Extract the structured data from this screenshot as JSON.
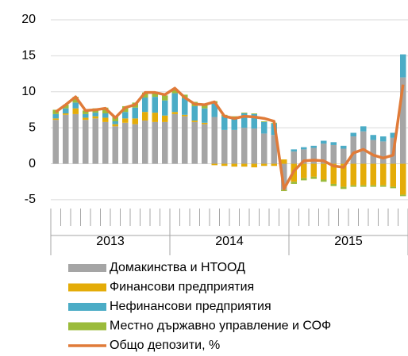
{
  "chart_data": {
    "type": "bar",
    "stacked": true,
    "categories": [
      null,
      null,
      null,
      null,
      null,
      null,
      null,
      null,
      null,
      null,
      null,
      null,
      null,
      null,
      null,
      null,
      null,
      null,
      null,
      null,
      null,
      null,
      null,
      null,
      null,
      null,
      null,
      null,
      null,
      null,
      null,
      null,
      null,
      null,
      null,
      null
    ],
    "year_labels": [
      "2013",
      "2014",
      "2015"
    ],
    "series": [
      {
        "name": "Домакинства и НТООД",
        "color": "#a5a5a5",
        "values": [
          6.1,
          6.8,
          6.9,
          6.1,
          6.3,
          5.8,
          5.2,
          5.7,
          5.5,
          6.0,
          5.8,
          5.8,
          6.9,
          6.6,
          5.8,
          5.5,
          6.5,
          4.7,
          4.7,
          5.0,
          4.9,
          4.2,
          4.0,
          -3.6,
          1.7,
          2.0,
          2.2,
          2.8,
          2.6,
          2.1,
          3.8,
          4.5,
          3.3,
          3.1,
          3.6,
          12.0
        ]
      },
      {
        "name": "Финансови предприятия",
        "color": "#e4ac08",
        "values": [
          0.2,
          0.2,
          0.8,
          0.3,
          0.3,
          0.6,
          0.3,
          0.6,
          0.8,
          1.2,
          1.3,
          0.9,
          0.3,
          0.2,
          0.2,
          0.2,
          -0.2,
          -0.3,
          -0.4,
          -0.4,
          -0.5,
          -0.3,
          -0.3,
          0.6,
          -2.5,
          -2.0,
          -1.8,
          -2.2,
          -2.8,
          -3.2,
          -3.0,
          -3.0,
          -3.0,
          -3.0,
          -3.2,
          -4.3
        ]
      },
      {
        "name": "Нефинансови предприятия",
        "color": "#4bacc6",
        "values": [
          0.6,
          0.7,
          0.8,
          0.5,
          0.5,
          0.6,
          0.4,
          0.9,
          1.5,
          2.0,
          2.2,
          2.1,
          2.6,
          2.3,
          2.0,
          2.0,
          1.9,
          1.9,
          1.7,
          2.0,
          2.0,
          1.6,
          1.6,
          0.0,
          0.3,
          0.3,
          0.3,
          0.4,
          0.4,
          0.4,
          0.5,
          0.7,
          0.7,
          0.7,
          0.7,
          3.2
        ]
      },
      {
        "name": "Местно държавно управление и СОФ",
        "color": "#9bbb3b",
        "values": [
          0.6,
          0.5,
          0.8,
          0.5,
          0.6,
          0.8,
          0.6,
          0.8,
          0.7,
          0.7,
          0.7,
          0.7,
          0.6,
          0.5,
          0.6,
          0.5,
          0.3,
          0.2,
          0.2,
          0.1,
          0.1,
          0.1,
          0.1,
          -0.2,
          -0.3,
          -0.3,
          -0.3,
          -0.3,
          -0.3,
          -0.3,
          -0.2,
          -0.2,
          -0.2,
          -0.2,
          -0.2,
          -0.2
        ]
      },
      {
        "name": "Общо депозити, %",
        "color": "#e07b39",
        "type": "line",
        "values": [
          7.2,
          8.2,
          9.3,
          7.4,
          7.5,
          7.7,
          6.4,
          7.8,
          8.2,
          9.9,
          9.9,
          9.6,
          10.5,
          9.2,
          8.3,
          8.2,
          8.6,
          6.6,
          6.3,
          6.6,
          6.5,
          6.3,
          5.9,
          -3.5,
          -1.0,
          0.4,
          0.5,
          0.4,
          -0.3,
          -0.5,
          1.5,
          2.0,
          1.2,
          0.8,
          1.2,
          11.0
        ]
      }
    ],
    "ylim": [
      -6,
      20
    ],
    "yticks": [
      -5,
      0,
      5,
      10,
      15,
      20
    ],
    "grid": true
  }
}
